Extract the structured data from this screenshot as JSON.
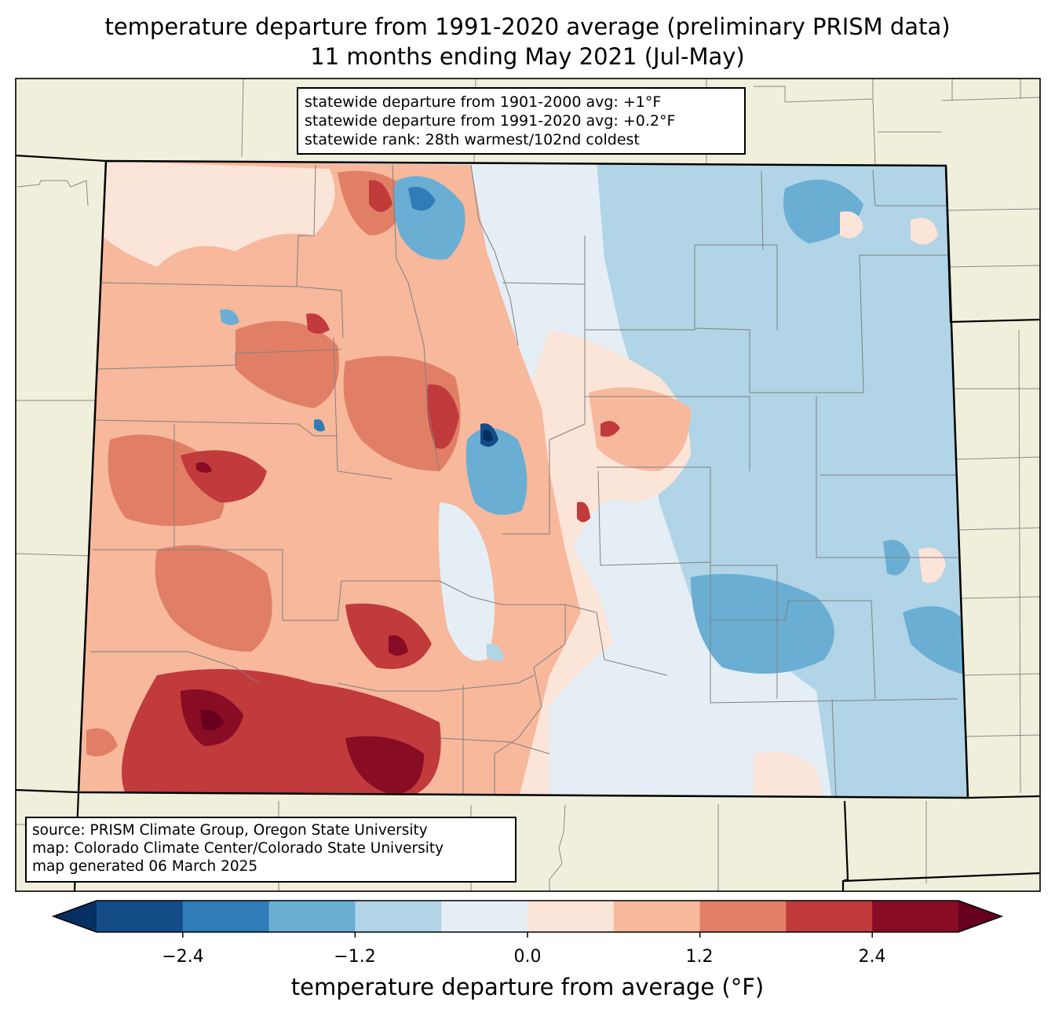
{
  "title": {
    "line1": "temperature departure from 1991-2020 average (preliminary PRISM data)",
    "line2": "11 months ending May 2021 (Jul-May)"
  },
  "stats": {
    "line1": "statewide departure from 1901-2000 avg: +1°F",
    "line2": "statewide departure from 1991-2020 avg: +0.2°F",
    "line3": "statewide rank: 28th warmest/102nd coldest"
  },
  "source": {
    "line1": "source: PRISM Climate Group, Oregon State University",
    "line2": "map: Colorado Climate Center/Colorado State University",
    "line3": "map generated 06 March 2025"
  },
  "colorbar": {
    "label": "temperature departure from average (°F)",
    "ticks": [
      "−2.4",
      "−1.2",
      "0.0",
      "1.2",
      "2.4"
    ],
    "boundaries": [
      -3.0,
      -2.4,
      -1.8,
      -1.2,
      -0.6,
      0.0,
      0.6,
      1.2,
      1.8,
      2.4,
      3.0
    ],
    "colors": [
      "#053061",
      "#144c87",
      "#2f7cb8",
      "#6aaed3",
      "#b1d4e7",
      "#e5eef5",
      "#fbe4d8",
      "#f7b89c",
      "#e17f66",
      "#c13a3c",
      "#870c24",
      "#67001f"
    ]
  },
  "map": {
    "land_color": "#efefdb",
    "state_border_color": "#000000",
    "county_border_color": "#808080"
  }
}
